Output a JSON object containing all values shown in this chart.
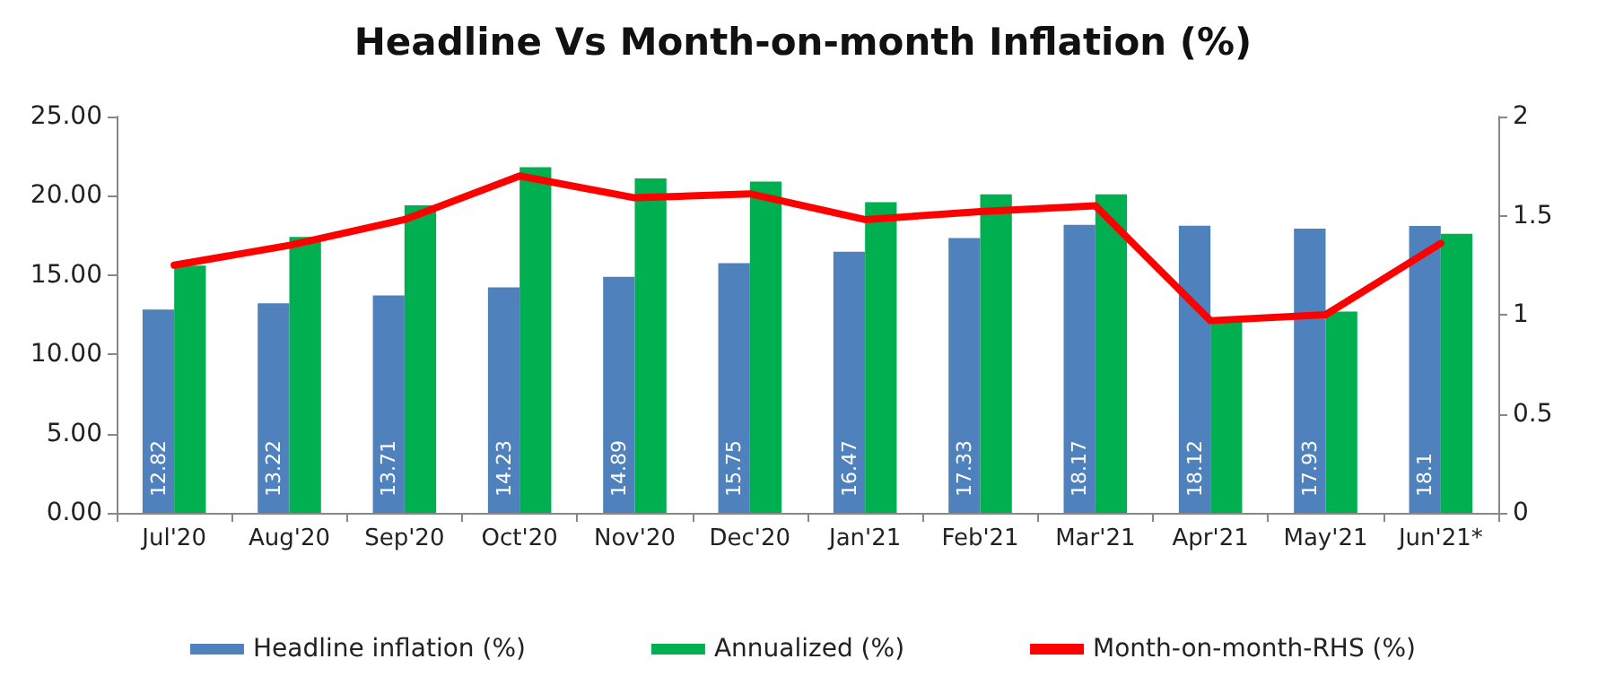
{
  "chart_data": {
    "type": "bar",
    "title": "Headline Vs Month-on-month Inflation (%)",
    "categories": [
      "Jul'20",
      "Aug'20",
      "Sep'20",
      "Oct'20",
      "Nov'20",
      "Dec'20",
      "Jan'21",
      "Feb'21",
      "Mar'21",
      "Apr'21",
      "May'21",
      "Jun'21*"
    ],
    "series": [
      {
        "name": "Headline inflation (%)",
        "color": "#4f81bd",
        "values": [
          12.82,
          13.22,
          13.71,
          14.23,
          14.89,
          15.75,
          16.47,
          17.33,
          18.17,
          18.12,
          17.93,
          18.1
        ],
        "value_labels": [
          "12.82",
          "13.22",
          "13.71",
          "14.23",
          "14.89",
          "15.75",
          "16.47",
          "17.33",
          "18.17",
          "18.12",
          "17.93",
          "18.1"
        ]
      },
      {
        "name": "Annualized (%)",
        "color": "#00b050",
        "values": [
          15.6,
          17.4,
          19.4,
          21.8,
          21.1,
          20.9,
          19.6,
          20.1,
          20.1,
          12.2,
          12.7,
          17.6
        ]
      },
      {
        "name": "Month-on-month-RHS (%)",
        "type": "line",
        "axis": "y2",
        "color": "#ff0000",
        "values": [
          1.25,
          1.35,
          1.48,
          1.7,
          1.59,
          1.61,
          1.48,
          1.52,
          1.55,
          0.97,
          1.0,
          1.36
        ]
      }
    ],
    "ylim": [
      0,
      25
    ],
    "yticks": [
      {
        "value": 0,
        "label": "0.00"
      },
      {
        "value": 5,
        "label": "5.00"
      },
      {
        "value": 10,
        "label": "10.00"
      },
      {
        "value": 15,
        "label": "15.00"
      },
      {
        "value": 20,
        "label": "20.00"
      },
      {
        "value": 25,
        "label": "25.00"
      }
    ],
    "y2lim": [
      0,
      2
    ],
    "y2ticks": [
      0,
      0.5,
      1,
      1.5,
      2
    ],
    "grid": false,
    "legend": "bottom",
    "marker": "none",
    "line_style": "solid"
  }
}
